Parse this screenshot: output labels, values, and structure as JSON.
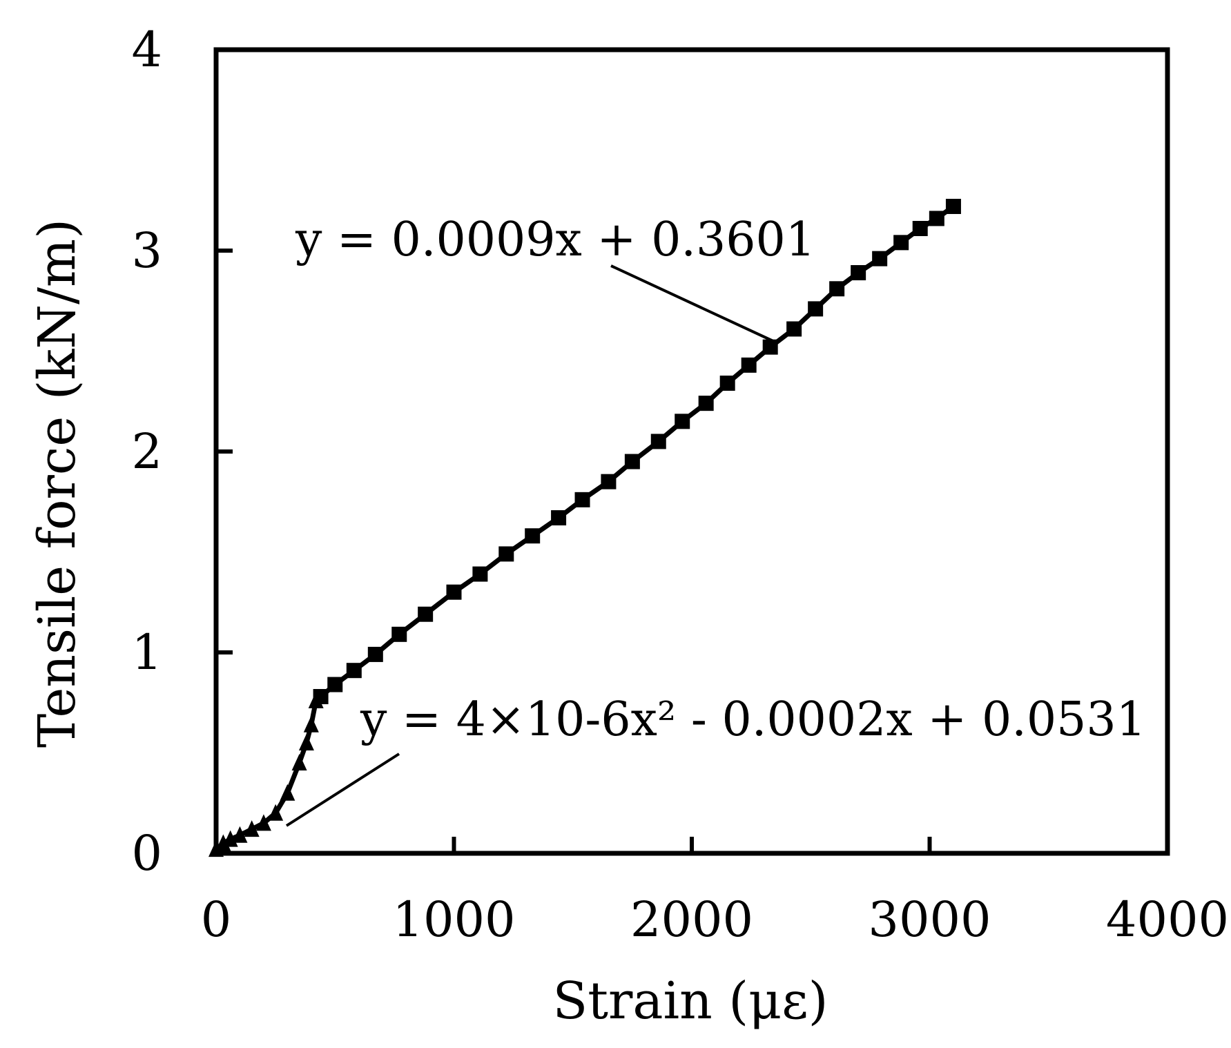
{
  "chart_data": {
    "type": "line",
    "xlabel": "Strain (με)",
    "ylabel": "Tensile force (kN/m)",
    "xlim": [
      0,
      4000
    ],
    "ylim": [
      0,
      4
    ],
    "x_ticks": [
      "0",
      "1000",
      "2000",
      "3000",
      "4000"
    ],
    "y_ticks": [
      "0",
      "1",
      "2",
      "3",
      "4"
    ],
    "grid": false,
    "legend": "none",
    "series": [
      {
        "marker": "triangle",
        "x": [
          0,
          30,
          60,
          100,
          150,
          200,
          250,
          300,
          350,
          380,
          400,
          420
        ],
        "y": [
          0.02,
          0.05,
          0.07,
          0.09,
          0.12,
          0.15,
          0.2,
          0.3,
          0.45,
          0.55,
          0.64,
          0.76
        ]
      },
      {
        "marker": "square",
        "x": [
          440,
          500,
          580,
          670,
          770,
          880,
          1000,
          1110,
          1220,
          1330,
          1440,
          1540,
          1650,
          1750,
          1860,
          1960,
          2060,
          2150,
          2240,
          2330,
          2430,
          2520,
          2610,
          2700,
          2790,
          2880,
          2960,
          3030,
          3100
        ],
        "y": [
          0.78,
          0.84,
          0.91,
          0.99,
          1.09,
          1.19,
          1.3,
          1.39,
          1.49,
          1.58,
          1.67,
          1.76,
          1.85,
          1.95,
          2.05,
          2.15,
          2.24,
          2.34,
          2.43,
          2.52,
          2.61,
          2.71,
          2.81,
          2.89,
          2.96,
          3.04,
          3.11,
          3.16,
          3.22
        ]
      }
    ],
    "annotations": [
      {
        "text": "y = 0.0009x + 0.3601"
      },
      {
        "text": "y = 4×10-6x² - 0.0002x + 0.0531"
      }
    ],
    "colors": {
      "line": "#000000",
      "axis": "#000000"
    }
  }
}
